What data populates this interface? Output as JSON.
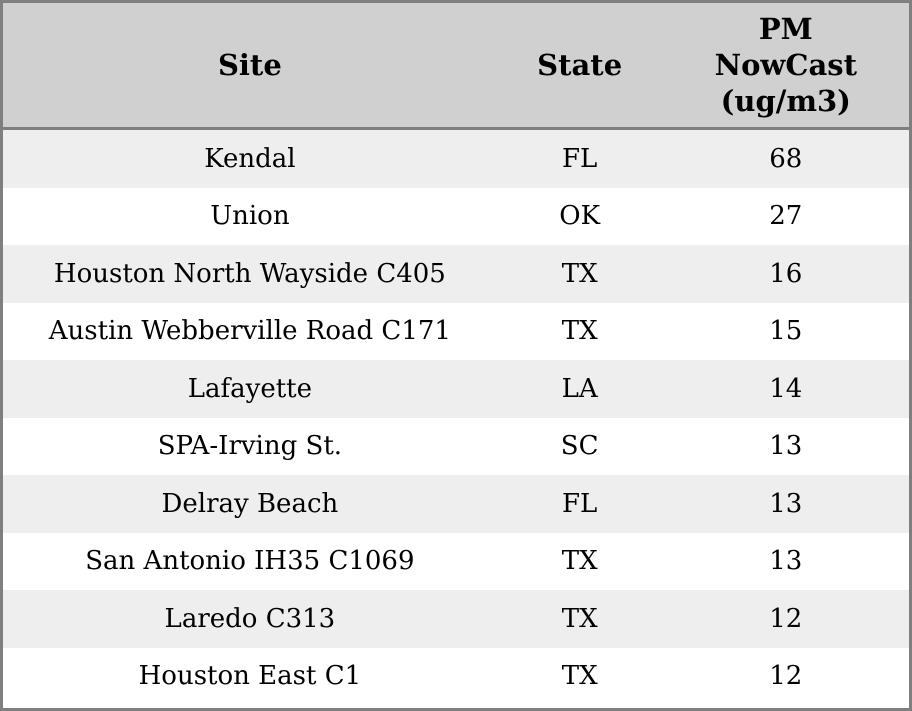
{
  "colors": {
    "header_bg": "#d0d0d0",
    "border": "#7f7f7f",
    "row_stripe": "#eeeeee",
    "row_plain": "#ffffff",
    "text": "#000000"
  },
  "table": {
    "columns": [
      {
        "key": "site",
        "label": "Site"
      },
      {
        "key": "state",
        "label": "State"
      },
      {
        "key": "value",
        "label": "PM\nNowCast\n(ug/m3)"
      }
    ],
    "rows": [
      {
        "site": "Kendal",
        "state": "FL",
        "value": "68"
      },
      {
        "site": "Union",
        "state": "OK",
        "value": "27"
      },
      {
        "site": "Houston North Wayside C405",
        "state": "TX",
        "value": "16"
      },
      {
        "site": "Austin Webberville Road C171",
        "state": "TX",
        "value": "15"
      },
      {
        "site": "Lafayette",
        "state": "LA",
        "value": "14"
      },
      {
        "site": "SPA-Irving St.",
        "state": "SC",
        "value": "13"
      },
      {
        "site": "Delray Beach",
        "state": "FL",
        "value": "13"
      },
      {
        "site": "San Antonio IH35 C1069",
        "state": "TX",
        "value": "13"
      },
      {
        "site": "Laredo C313",
        "state": "TX",
        "value": "12"
      },
      {
        "site": "Houston East C1",
        "state": "TX",
        "value": "12"
      }
    ]
  },
  "chart_data": {
    "type": "table",
    "title": "",
    "columns": [
      "Site",
      "State",
      "PM NowCast (ug/m3)"
    ],
    "rows": [
      [
        "Kendal",
        "FL",
        68
      ],
      [
        "Union",
        "OK",
        27
      ],
      [
        "Houston North Wayside C405",
        "TX",
        16
      ],
      [
        "Austin Webberville Road C171",
        "TX",
        15
      ],
      [
        "Lafayette",
        "LA",
        14
      ],
      [
        "SPA-Irving St.",
        "SC",
        13
      ],
      [
        "Delray Beach",
        "FL",
        13
      ],
      [
        "San Antonio IH35 C1069",
        "TX",
        13
      ],
      [
        "Laredo C313",
        "TX",
        12
      ],
      [
        "Houston East C1",
        "TX",
        12
      ]
    ]
  }
}
